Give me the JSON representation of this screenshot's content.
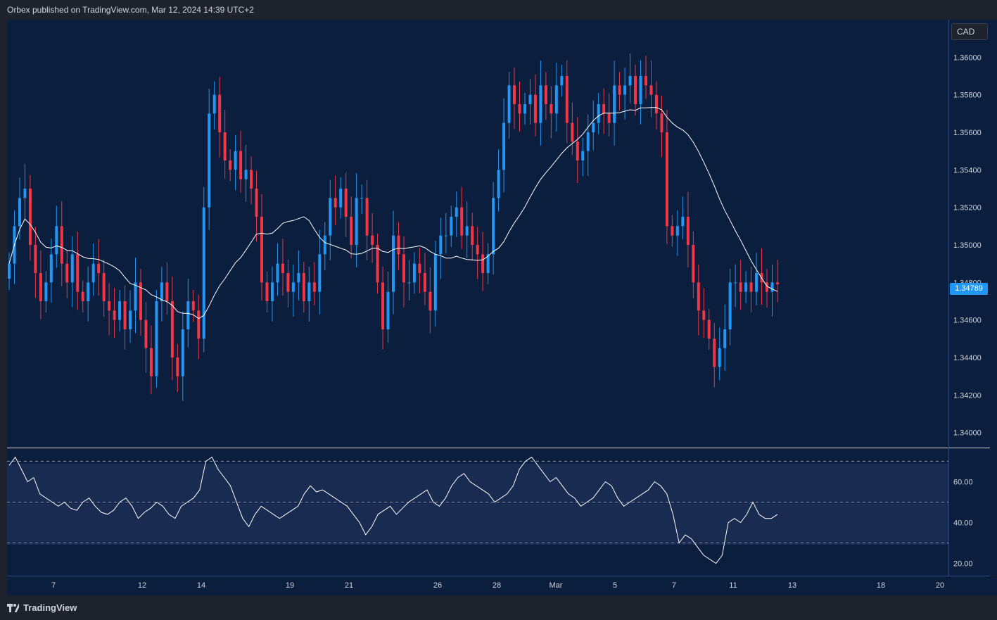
{
  "header": {
    "publisher_text": "Orbex published on TradingView.com, Mar 12, 2024 14:39 UTC+2"
  },
  "price_panel": {
    "currency": "CAD",
    "last_price_label": "1.34789",
    "last_price": 1.34789,
    "y_ticks": [
      "1.36000",
      "1.35800",
      "1.35600",
      "1.35400",
      "1.35200",
      "1.35000",
      "1.34800",
      "1.34600",
      "1.34400",
      "1.34200",
      "1.34000"
    ]
  },
  "rsi_panel": {
    "y_ticks": [
      "60.00",
      "40.00",
      "20.00"
    ],
    "levels": [
      70,
      50,
      30
    ]
  },
  "x_axis": {
    "labels": [
      "7",
      "12",
      "14",
      "19",
      "21",
      "26",
      "28",
      "Mar",
      "5",
      "7",
      "11",
      "13",
      "18",
      "20"
    ]
  },
  "footer": {
    "brand": "TradingView"
  },
  "colors": {
    "background": "#0b1e3d",
    "up": "#2196f3",
    "down": "#f23645",
    "ma_line": "#ffffff",
    "rsi_line": "#ffffff",
    "rsi_band": "#1a2b52"
  },
  "chart_data": [
    {
      "type": "candlestick",
      "ylim": [
        1.3392,
        1.362
      ],
      "moving_average_visible": true,
      "ohlc_close_series": [
        1.349,
        1.351,
        1.3525,
        1.353,
        1.35,
        1.3485,
        1.347,
        1.348,
        1.3495,
        1.351,
        1.349,
        1.348,
        1.3495,
        1.3475,
        1.347,
        1.348,
        1.349,
        1.3485,
        1.347,
        1.3465,
        1.346,
        1.347,
        1.3455,
        1.3465,
        1.348,
        1.346,
        1.3445,
        1.343,
        1.347,
        1.348,
        1.347,
        1.344,
        1.343,
        1.3455,
        1.347,
        1.3465,
        1.345,
        1.352,
        1.357,
        1.358,
        1.356,
        1.3545,
        1.354,
        1.355,
        1.3535,
        1.354,
        1.353,
        1.3515,
        1.348,
        1.347,
        1.348,
        1.349,
        1.3485,
        1.3475,
        1.348,
        1.3485,
        1.347,
        1.348,
        1.3475,
        1.3495,
        1.3505,
        1.3525,
        1.352,
        1.353,
        1.3515,
        1.35,
        1.3525,
        1.3525,
        1.3505,
        1.35,
        1.348,
        1.3455,
        1.3475,
        1.3505,
        1.3495,
        1.348,
        1.348,
        1.349,
        1.3485,
        1.3475,
        1.3465,
        1.3495,
        1.3505,
        1.3505,
        1.3515,
        1.352,
        1.3505,
        1.351,
        1.35,
        1.3495,
        1.3485,
        1.3495,
        1.3525,
        1.354,
        1.3565,
        1.3585,
        1.3575,
        1.357,
        1.3575,
        1.358,
        1.3565,
        1.3585,
        1.3575,
        1.357,
        1.3585,
        1.359,
        1.3565,
        1.3555,
        1.3545,
        1.355,
        1.356,
        1.3565,
        1.3575,
        1.357,
        1.3565,
        1.3585,
        1.358,
        1.3585,
        1.359,
        1.3575,
        1.359,
        1.3585,
        1.358,
        1.357,
        1.356,
        1.351,
        1.3505,
        1.351,
        1.3515,
        1.35,
        1.348,
        1.3465,
        1.346,
        1.345,
        1.3435,
        1.3445,
        1.3455,
        1.348,
        1.348,
        1.3475,
        1.348,
        1.3475,
        1.3485,
        1.348,
        1.3475,
        1.348,
        1.3479
      ],
      "x_labels": [
        "7",
        "12",
        "14",
        "19",
        "21",
        "26",
        "28",
        "Mar",
        "5",
        "7",
        "11",
        "13",
        "18",
        "20"
      ]
    },
    {
      "type": "line",
      "series": [
        {
          "name": "",
          "values": [
            68,
            72,
            66,
            60,
            62,
            54,
            52,
            50,
            48,
            50,
            47,
            46,
            50,
            52,
            48,
            45,
            44,
            46,
            50,
            52,
            48,
            42,
            45,
            47,
            50,
            48,
            44,
            42,
            48,
            50,
            52,
            56,
            70,
            72,
            66,
            62,
            58,
            50,
            42,
            38,
            44,
            48,
            46,
            44,
            42,
            44,
            46,
            48,
            54,
            58,
            55,
            56,
            54,
            52,
            50,
            48,
            44,
            40,
            34,
            38,
            44,
            46,
            48,
            44,
            47,
            50,
            52,
            54,
            56,
            50,
            48,
            52,
            58,
            62,
            64,
            60,
            58,
            56,
            54,
            50,
            52,
            54,
            58,
            66,
            70,
            72,
            68,
            64,
            60,
            62,
            58,
            54,
            52,
            48,
            50,
            52,
            56,
            60,
            58,
            52,
            48,
            50,
            52,
            54,
            56,
            60,
            58,
            54,
            44,
            30,
            34,
            32,
            28,
            24,
            22,
            20,
            24,
            40,
            42,
            40,
            44,
            50,
            44,
            42,
            42,
            44
          ]
        }
      ],
      "ylim": [
        14,
        76
      ],
      "levels": [
        70,
        50,
        30
      ]
    }
  ]
}
